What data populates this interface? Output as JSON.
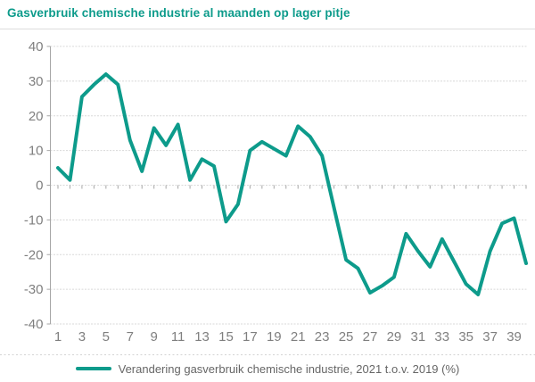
{
  "header": {
    "title": "Gasverbruik chemische industrie al maanden op lager pitje"
  },
  "colors": {
    "accent": "#0d9b8b",
    "grid": "#d8d8d8",
    "axis_line": "#a6a6a6",
    "axis_text": "#7f7f7f",
    "legend_text": "#666666"
  },
  "legend": {
    "series_label": "Verandering gasverbruik chemische industrie, 2021 t.o.v. 2019 (%)"
  },
  "chart_data": {
    "type": "line",
    "title": "Gasverbruik chemische industrie al maanden op lager pitje",
    "xlabel": "",
    "ylabel": "",
    "x": [
      1,
      2,
      3,
      4,
      5,
      6,
      7,
      8,
      9,
      10,
      11,
      12,
      13,
      14,
      15,
      16,
      17,
      18,
      19,
      20,
      21,
      22,
      23,
      24,
      25,
      26,
      27,
      28,
      29,
      30,
      31,
      32,
      33,
      34,
      35,
      36,
      37,
      38,
      39,
      40
    ],
    "values": [
      5,
      1.5,
      25.5,
      29,
      32,
      29,
      13,
      4,
      16.5,
      11.5,
      17.5,
      1.5,
      7.5,
      5.5,
      -10.5,
      -5.5,
      10,
      12.5,
      10.5,
      8.5,
      17,
      14,
      8.5,
      -6.5,
      -21.5,
      -24,
      -31,
      -29,
      -26.5,
      -14,
      -19,
      -23.5,
      -15.5,
      -22,
      -28.5,
      -31.5,
      -19,
      -11,
      -9.5,
      -22.5
    ],
    "x_tick_labels": [
      "1",
      "3",
      "5",
      "7",
      "9",
      "11",
      "13",
      "15",
      "17",
      "19",
      "21",
      "23",
      "25",
      "27",
      "29",
      "31",
      "33",
      "35",
      "37",
      "39"
    ],
    "y_ticks": [
      40,
      30,
      20,
      10,
      0,
      -10,
      -20,
      -30,
      -40
    ],
    "ylim": [
      -40,
      40
    ],
    "grid": true,
    "legend_entries": [
      "Verandering gasverbruik chemische industrie, 2021 t.o.v. 2019 (%)"
    ],
    "legend_position": "bottom",
    "series": [
      {
        "name": "Verandering gasverbruik chemische industrie, 2021 t.o.v. 2019 (%)"
      }
    ]
  }
}
